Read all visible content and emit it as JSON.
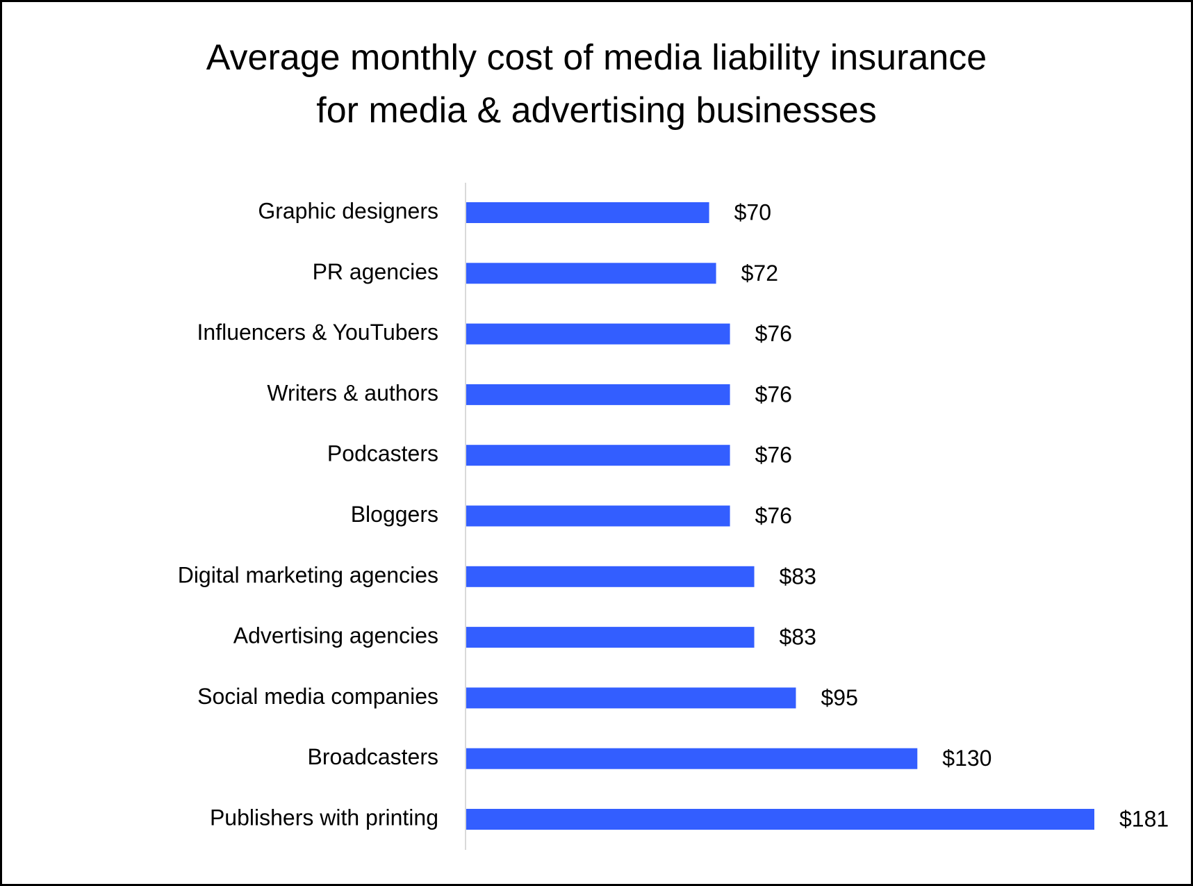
{
  "chart_data": {
    "type": "bar",
    "orientation": "horizontal",
    "title": "Average monthly cost of media liability insurance for media & advertising businesses",
    "title_lines": [
      "Average monthly cost of media liability insurance",
      "for media & advertising businesses"
    ],
    "categories": [
      "Graphic designers",
      "PR agencies",
      "Influencers & YouTubers",
      "Writers & authors",
      "Podcasters",
      "Bloggers",
      "Digital marketing agencies",
      "Advertising agencies",
      "Social media companies",
      "Broadcasters",
      "Publishers with printing"
    ],
    "values": [
      70,
      72,
      76,
      76,
      76,
      76,
      83,
      83,
      95,
      130,
      181
    ],
    "data_labels": [
      "$70",
      "$72",
      "$76",
      "$76",
      "$76",
      "$76",
      "$83",
      "$83",
      "$95",
      "$130",
      "$181"
    ],
    "xlabel": "",
    "ylabel": "",
    "xlim": [
      0,
      181
    ],
    "grid": false,
    "legend": "none",
    "bar_color": "#335EFF",
    "axis_color": "#D9D9D9"
  }
}
